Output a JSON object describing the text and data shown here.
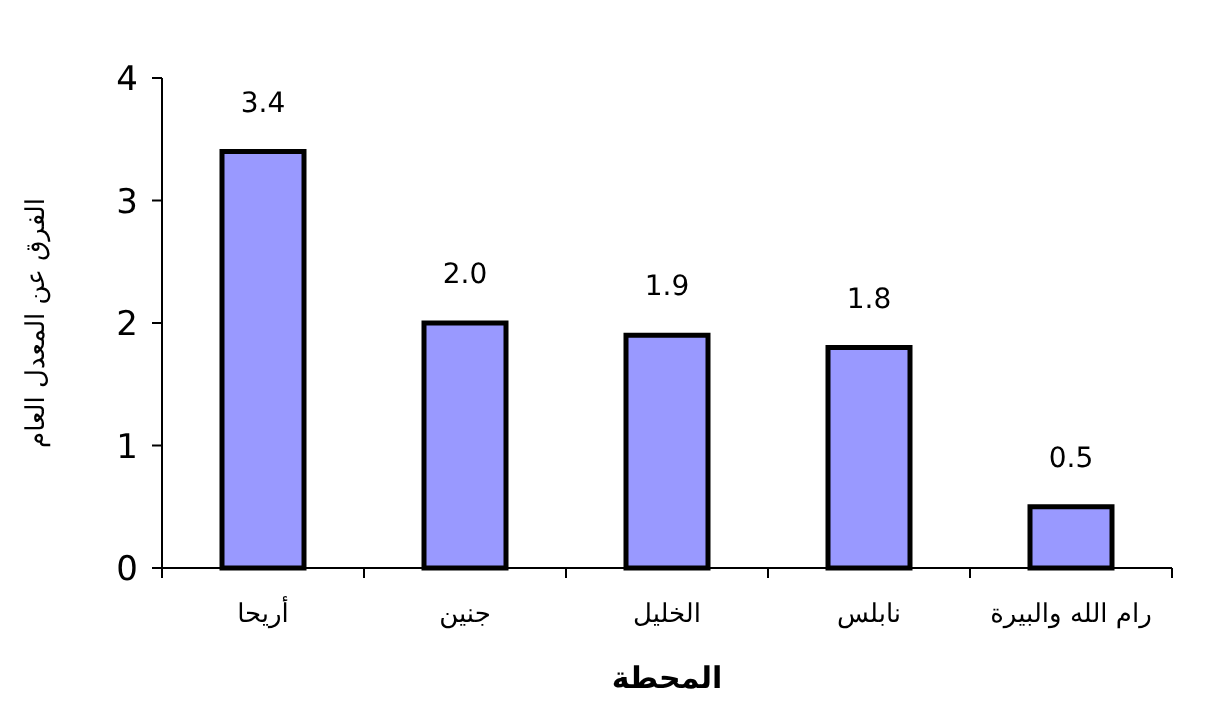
{
  "chart_data": {
    "type": "bar",
    "xlabel": "المحطة",
    "ylabel": "الفرق عن المعدل العام",
    "categories": [
      "أريحا",
      "جنين",
      "الخليل",
      "نابلس",
      "رام الله والبيرة"
    ],
    "values": [
      3.4,
      2.0,
      1.9,
      1.8,
      0.5
    ],
    "value_labels": [
      "3.4",
      "2.0",
      "1.9",
      "1.8",
      "0.5"
    ],
    "color": "#9999ff",
    "ylim": [
      0,
      4
    ],
    "yticks": [
      0,
      1,
      2,
      3,
      4
    ],
    "grid": false
  }
}
